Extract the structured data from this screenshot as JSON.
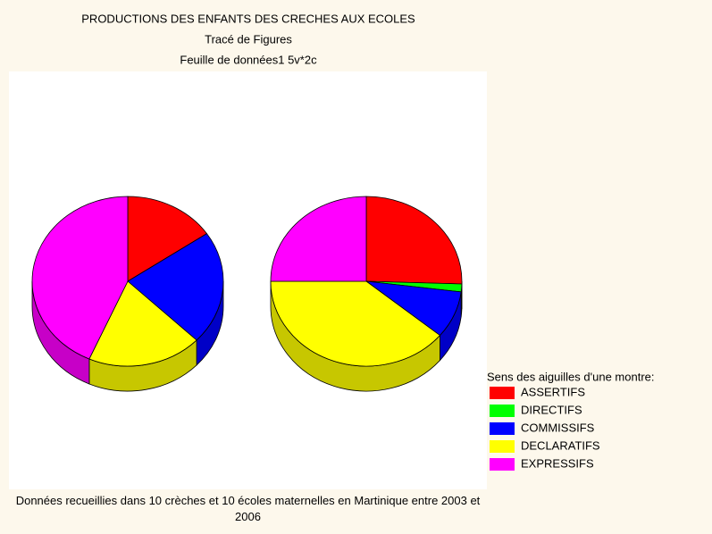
{
  "chart_data": {
    "type": "pie",
    "title": "PRODUCTIONS DES ENFANTS DES CRECHES AUX ECOLES",
    "subtitle": "Tracé de Figures",
    "subtitle2": "Feuille de données1 5v*2c",
    "legend_title": "Sens des aiguilles d'une montre:",
    "categories": [
      "ASSERTIFS",
      "DIRECTIFS",
      "COMMISSIFS",
      "DECLARATIFS",
      "EXPRESSIFS"
    ],
    "colors": [
      "#ff0000",
      "#00ff00",
      "#0000ff",
      "#ffff00",
      "#ff00ff"
    ],
    "series": [
      {
        "values": [
          15.5,
          0,
          21.7,
          19.4,
          43.4
        ]
      },
      {
        "values": [
          25.5,
          1.5,
          9,
          39,
          25
        ]
      }
    ],
    "footnote": "Données recueillies dans 10 crèches et 10 écoles maternelles en Martinique entre 2003 et 2006"
  }
}
